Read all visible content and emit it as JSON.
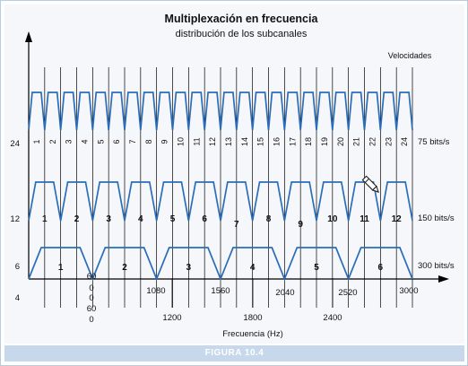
{
  "title": "Multiplexación en frecuencia",
  "subtitle": "distribución de los subcanales",
  "axis": {
    "y_label": "Velocidades",
    "x_label": "Frecuencia (Hz)",
    "y_ticks": [
      "24",
      "12",
      "6",
      "4"
    ],
    "freq_ticks_upper": [
      "0",
      "1080",
      "1560",
      "2040",
      "2520",
      "3000"
    ],
    "freq_ticks_lower": [
      "60",
      "0",
      "60",
      "0",
      "1200",
      "1800",
      "2400"
    ]
  },
  "rows": [
    {
      "rate_label": "75 bits/s",
      "channels": 24,
      "labels": [
        "1",
        "2",
        "3",
        "4",
        "5",
        "6",
        "7",
        "8",
        "9",
        "10",
        "11",
        "12",
        "13",
        "14",
        "15",
        "16",
        "17",
        "18",
        "19",
        "20",
        "21",
        "22",
        "23",
        "24"
      ]
    },
    {
      "rate_label": "150 bits/s",
      "channels": 12,
      "labels": [
        "1",
        "2",
        "3",
        "4",
        "5",
        "6",
        "7",
        "8",
        "9",
        "10",
        "11",
        "12"
      ]
    },
    {
      "rate_label": "300 bits/s",
      "channels": 6,
      "labels": [
        "1",
        "2",
        "3",
        "4",
        "5",
        "6"
      ]
    }
  ],
  "colors": {
    "signal": "#2a6db8",
    "axis": "#000000",
    "caption_bar": "#c7d8ec"
  },
  "figure_label": "FIGURA 10.4",
  "icons": [
    "pencil-icon"
  ]
}
